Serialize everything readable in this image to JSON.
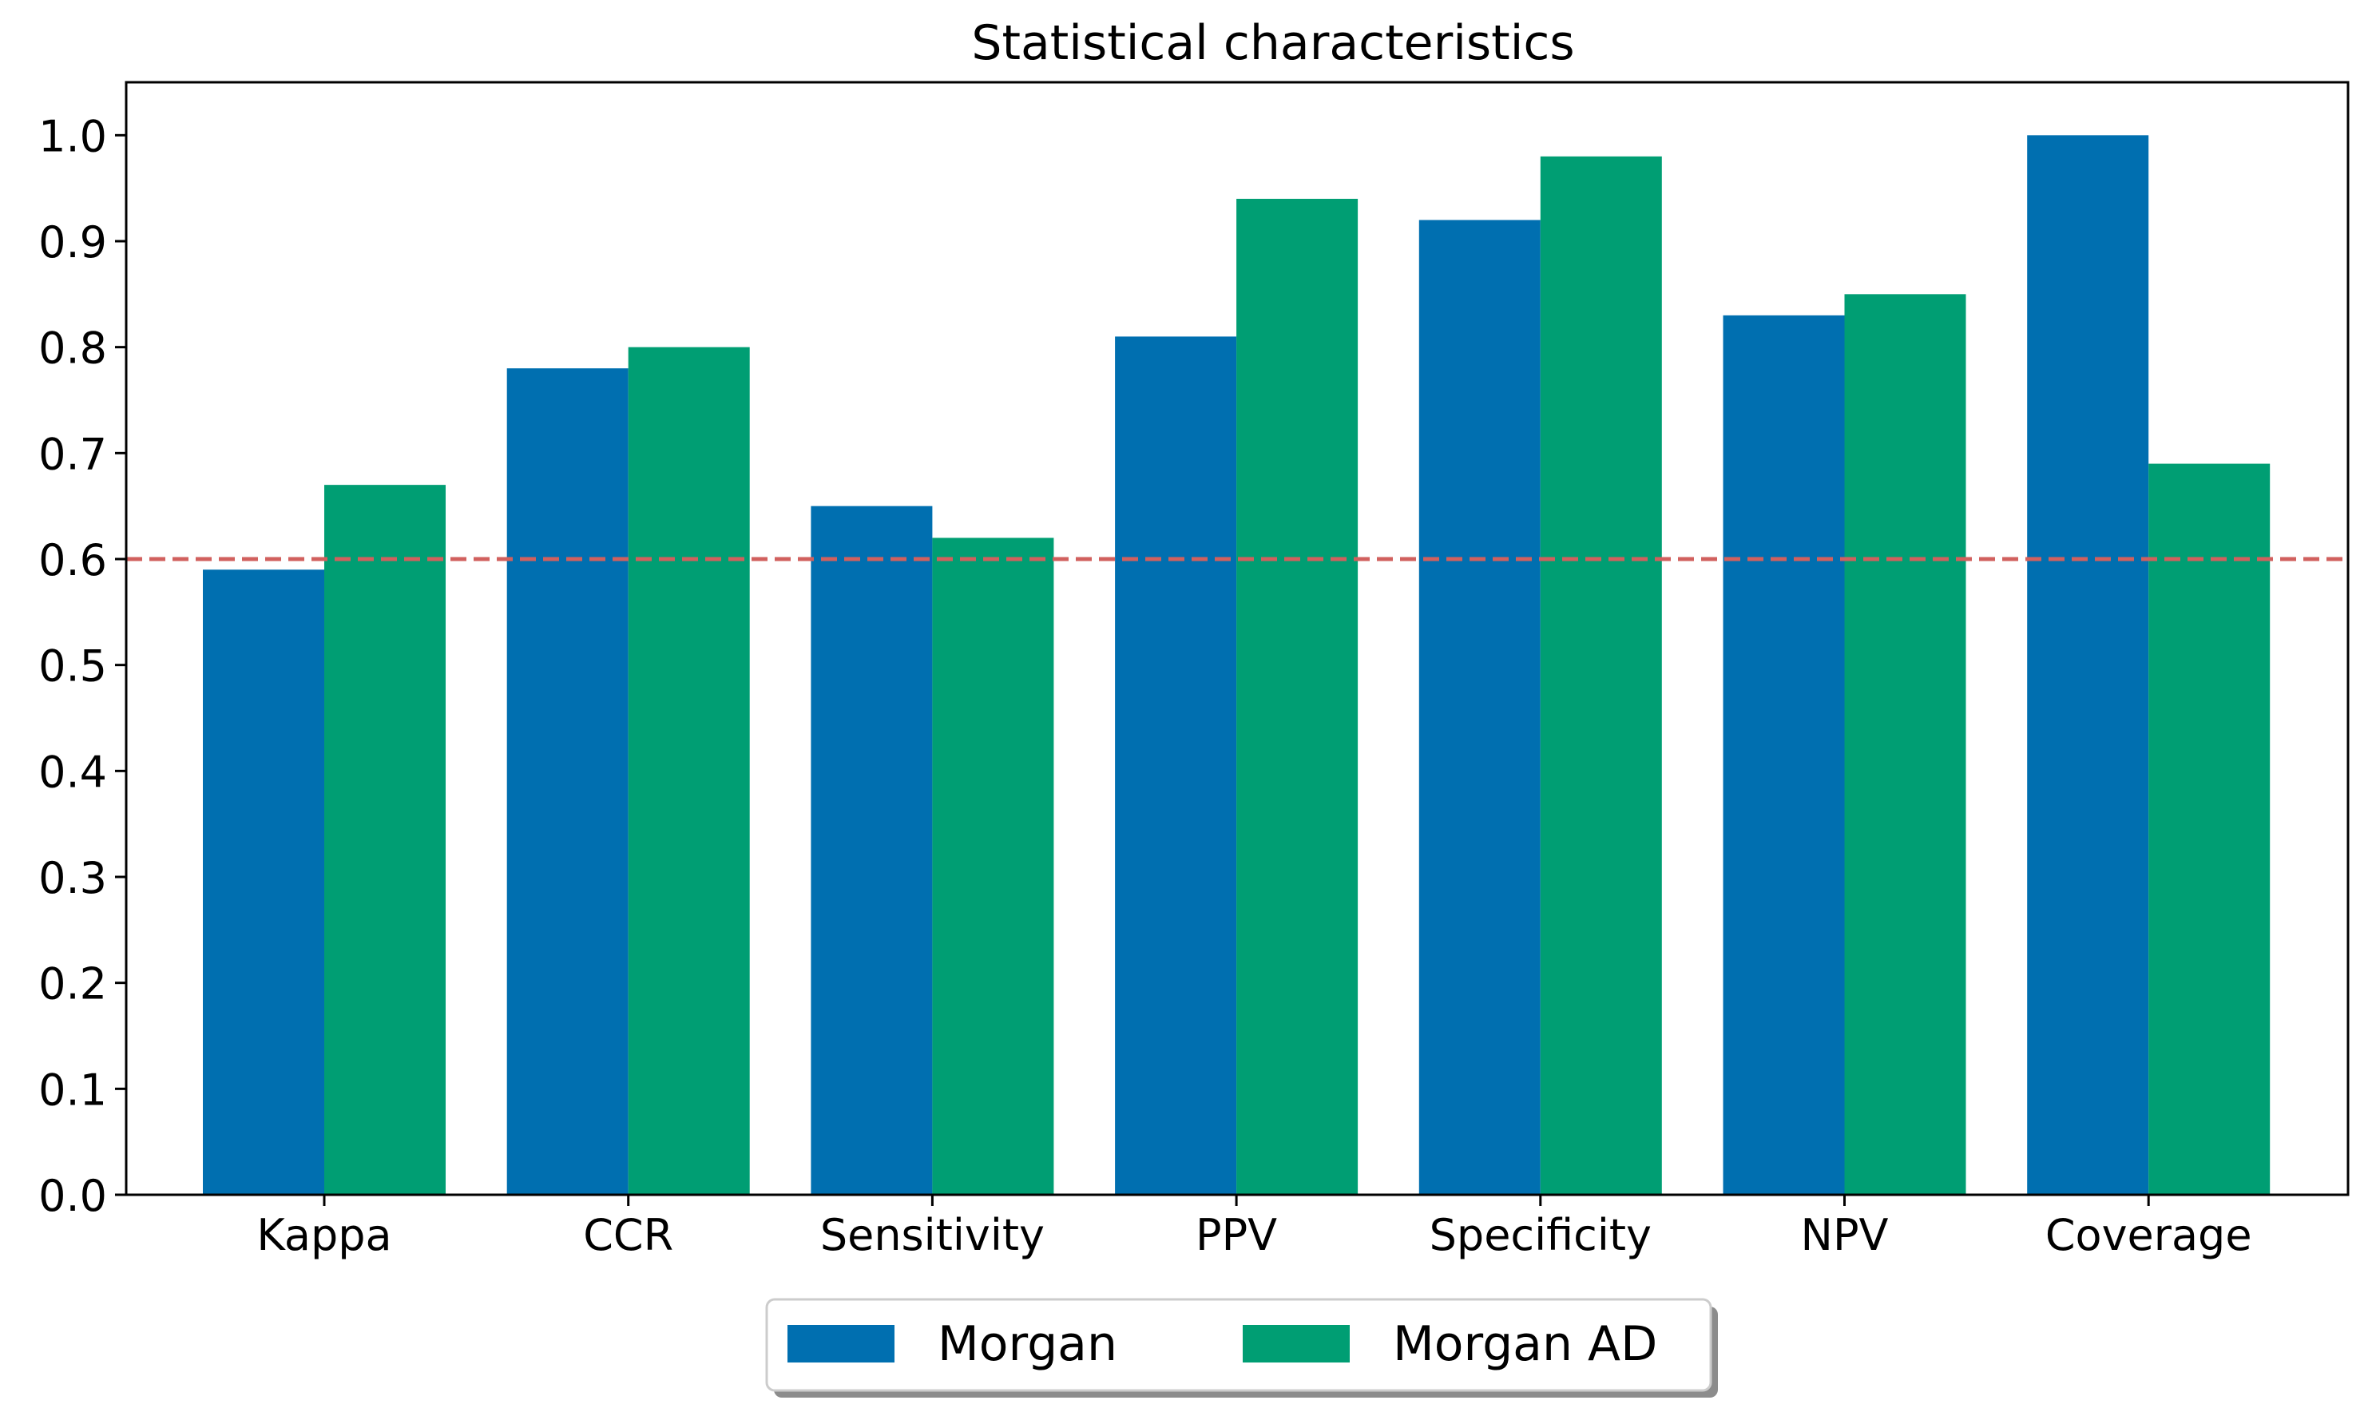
{
  "chart_data": {
    "type": "bar",
    "title": "Statistical characteristics",
    "xlabel": "",
    "ylabel": "",
    "categories": [
      "Kappa",
      "CCR",
      "Sensitivity",
      "PPV",
      "Specificity",
      "NPV",
      "Coverage"
    ],
    "series": [
      {
        "name": "Morgan",
        "color": "#006fb0",
        "values": [
          0.59,
          0.78,
          0.65,
          0.81,
          0.92,
          0.83,
          1.0
        ]
      },
      {
        "name": "Morgan AD",
        "color": "#009e73",
        "values": [
          0.67,
          0.8,
          0.62,
          0.94,
          0.98,
          0.85,
          0.69
        ]
      }
    ],
    "ylim": [
      0,
      1.05
    ],
    "yticks": [
      "0.0",
      "0.1",
      "0.2",
      "0.3",
      "0.4",
      "0.5",
      "0.6",
      "0.7",
      "0.8",
      "0.9",
      "1.0"
    ],
    "reference_line": {
      "y": 0.6,
      "color": "#d1605e",
      "style": "dashed"
    },
    "grid": false,
    "legend": {
      "placement": "bottom-center",
      "columns": 2
    }
  }
}
